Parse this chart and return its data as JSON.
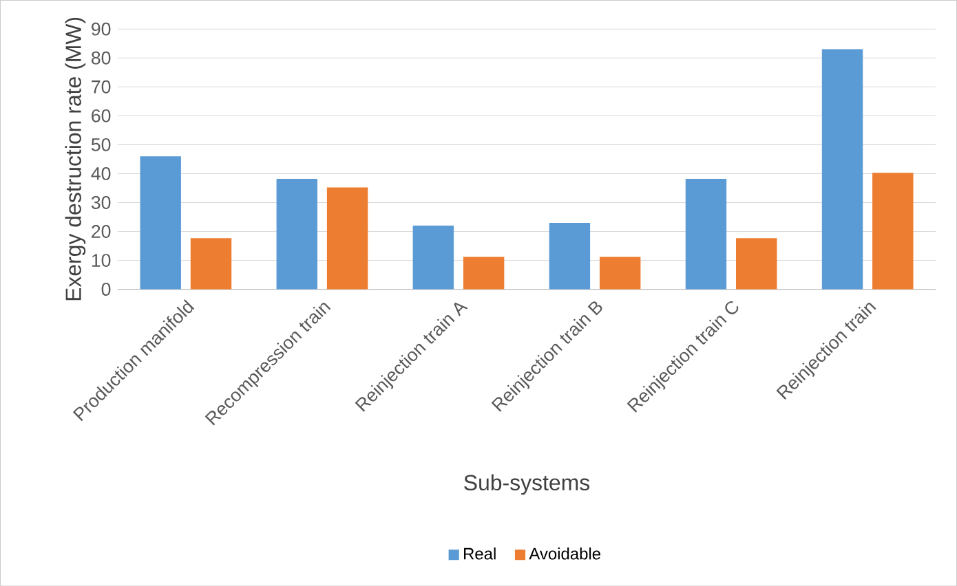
{
  "chart_data": {
    "type": "bar",
    "xlabel": "Sub-systems",
    "ylabel": "Exergy destruction rate (MW)",
    "categories": [
      "Production manifold",
      "Recompression train",
      "Reinjection train A",
      "Reinjection train B",
      "Reinjection train C",
      "Reinjection train"
    ],
    "series": [
      {
        "name": "Real",
        "color": "#5b9bd5",
        "values": [
          46,
          38.2,
          22,
          23,
          38.2,
          83
        ]
      },
      {
        "name": "Avoidable",
        "color": "#ed7d31",
        "values": [
          17.7,
          35.2,
          11.2,
          11.2,
          17.7,
          40.3
        ]
      }
    ],
    "ylim": [
      0,
      90
    ],
    "yticks": [
      0,
      10,
      20,
      30,
      40,
      50,
      60,
      70,
      80,
      90
    ],
    "grid": "y",
    "legend": "bottom"
  }
}
